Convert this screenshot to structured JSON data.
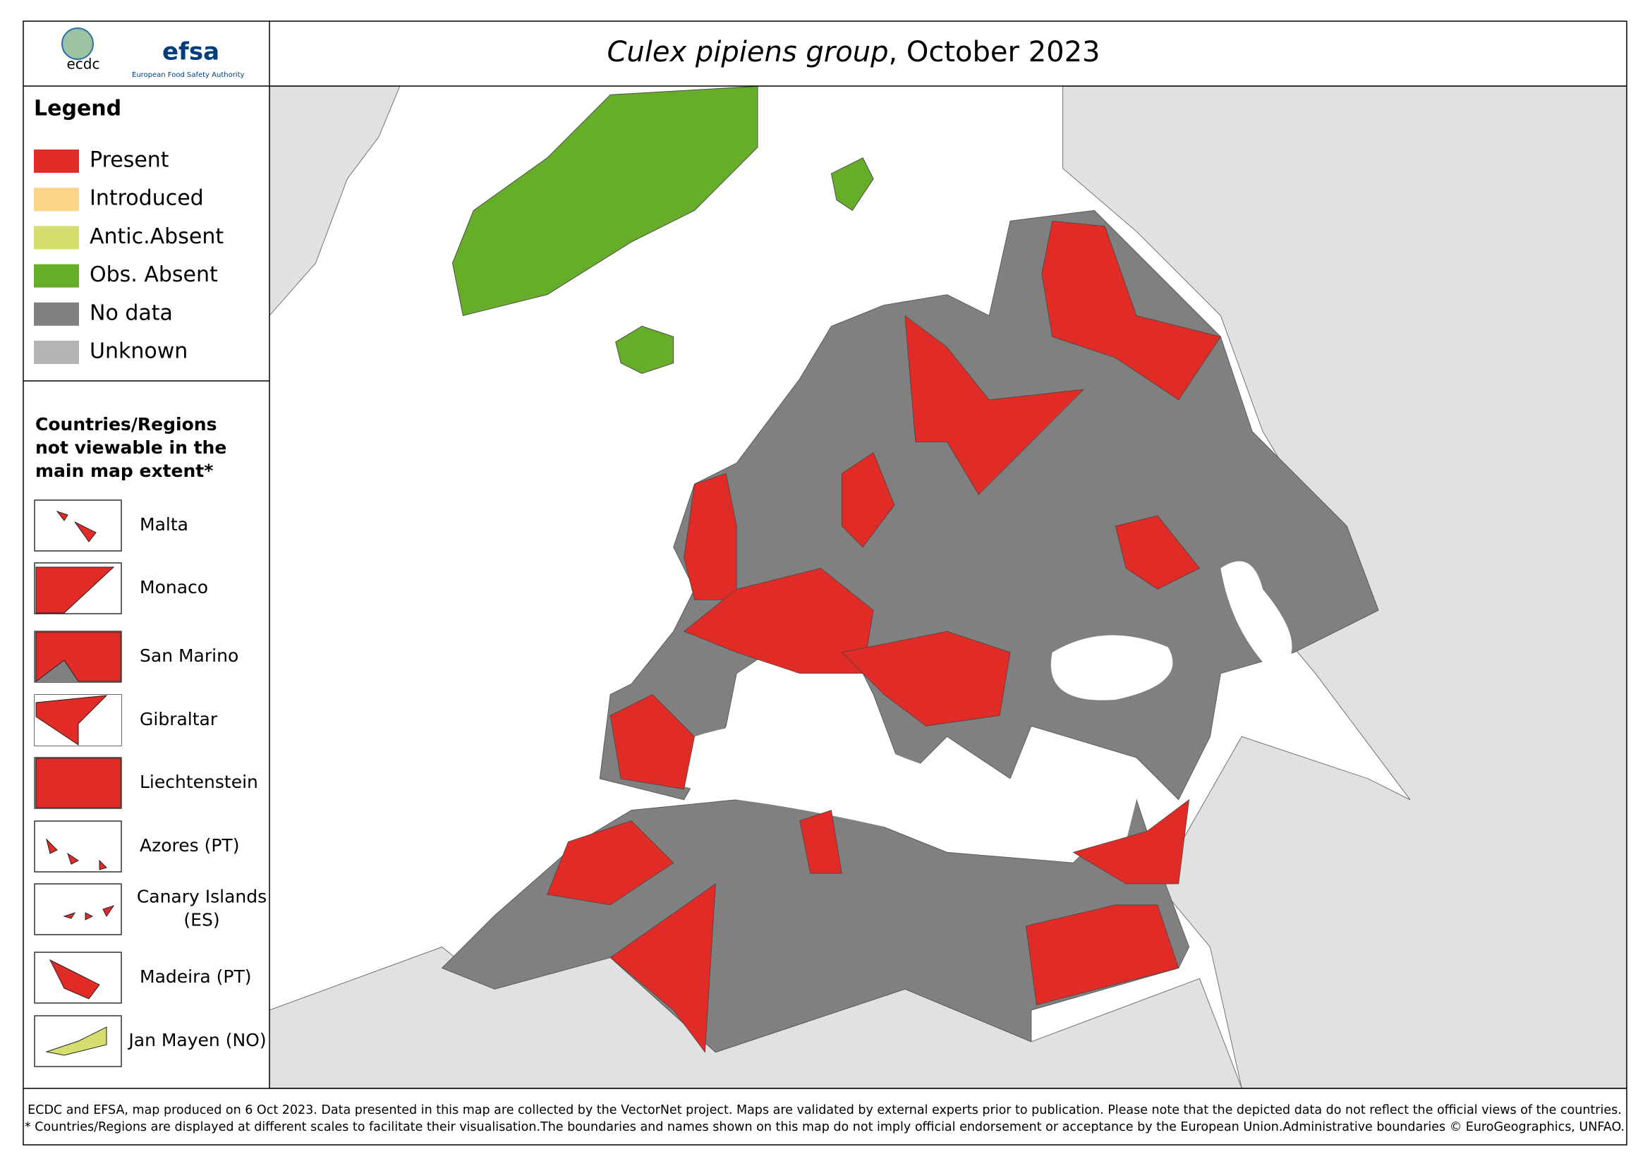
{
  "header": {
    "title_italic": "Culex pipiens group",
    "title_rest": ", October 2023",
    "logo_ecdc": "ecdc",
    "logo_efsa": "efsa",
    "logo_efsa_sub": "European Food Safety Authority"
  },
  "legend": {
    "title": "Legend",
    "items": [
      {
        "label": "Present",
        "color": "#e02b27"
      },
      {
        "label": "Introduced",
        "color": "#fdd38a"
      },
      {
        "label": "Antic.Absent",
        "color": "#d5de6e"
      },
      {
        "label": "Obs. Absent",
        "color": "#66ad2a"
      },
      {
        "label": "No data",
        "color": "#808080"
      },
      {
        "label": "Unknown",
        "color": "#b4b4b4"
      }
    ]
  },
  "insets": {
    "title": [
      "Countries/Regions",
      "not viewable in the",
      "main map extent*"
    ],
    "items": [
      [
        "Malta"
      ],
      [
        "Monaco"
      ],
      [
        "San Marino"
      ],
      [
        "Gibraltar"
      ],
      [
        "Liechtenstein"
      ],
      [
        "Azores (PT)"
      ],
      [
        "Canary Islands",
        "(ES)"
      ],
      [
        "Madeira (PT)"
      ],
      [
        "Jan Mayen (NO)"
      ]
    ]
  },
  "footer": [
    "ECDC and EFSA, map produced on 6 Oct 2023. Data presented in this map are collected by the VectorNet project. Maps are validated by external experts prior to publication. Please note that the depicted data do not reflect the official views of the countries.",
    "* Countries/Regions are displayed at different scales to facilitate their visualisation.The boundaries and names shown on this map do not imply official endorsement or acceptance by the European Union.Administrative boundaries © EuroGeographics, UNFAO."
  ]
}
